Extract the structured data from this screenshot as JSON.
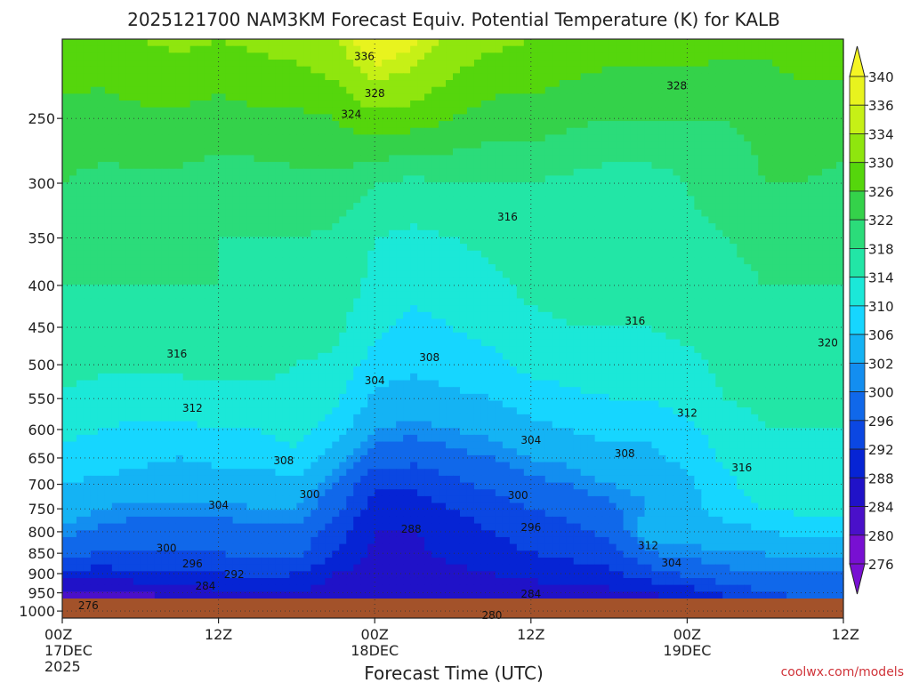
{
  "chart_data": {
    "type": "heatmap",
    "title": "2025121700 NAM3KM Forecast Equiv. Potential Temperature (K) for KALB",
    "xlabel": "Forecast Time (UTC)",
    "ylabel": "",
    "credit": "coolwx.com/models",
    "x_ticks": [
      {
        "t": 0,
        "label": "00Z",
        "sub1": "17DEC",
        "sub2": "2025"
      },
      {
        "t": 12,
        "label": "12Z",
        "sub1": "",
        "sub2": ""
      },
      {
        "t": 24,
        "label": "00Z",
        "sub1": "18DEC",
        "sub2": ""
      },
      {
        "t": 36,
        "label": "12Z",
        "sub1": "",
        "sub2": ""
      },
      {
        "t": 48,
        "label": "00Z",
        "sub1": "19DEC",
        "sub2": ""
      },
      {
        "t": 60,
        "label": "12Z",
        "sub1": "",
        "sub2": ""
      }
    ],
    "xlim": [
      0,
      60
    ],
    "y_ticks": [
      250,
      300,
      350,
      400,
      450,
      500,
      550,
      600,
      650,
      700,
      750,
      800,
      850,
      900,
      950,
      1000
    ],
    "ylim": [
      200,
      1020
    ],
    "y_scale": "log",
    "y_reversed": true,
    "grid": true,
    "levels": [
      276,
      280,
      284,
      288,
      292,
      296,
      300,
      302,
      306,
      310,
      314,
      318,
      322,
      326,
      330,
      334,
      336,
      340
    ],
    "colorbar": {
      "labels": [
        "340",
        "336",
        "334",
        "330",
        "326",
        "322",
        "318",
        "314",
        "310",
        "306",
        "302",
        "300",
        "296",
        "292",
        "288",
        "284",
        "280",
        "276"
      ],
      "colors": [
        "#f5f524",
        "#e8f31e",
        "#c6f016",
        "#8fe60e",
        "#55d60c",
        "#34d24a",
        "#2bdc7a",
        "#22e6a6",
        "#1be8d8",
        "#16d6ff",
        "#14b3f4",
        "#138ef0",
        "#1068ea",
        "#0b47e2",
        "#0624d4",
        "#2012c8",
        "#4a10c9",
        "#7810d2"
      ],
      "placement": "right"
    },
    "times": [
      0,
      3,
      6,
      9,
      12,
      15,
      18,
      21,
      24,
      27,
      30,
      33,
      36,
      39,
      42,
      45,
      48,
      51,
      54,
      57,
      60
    ],
    "pressures": [
      200,
      250,
      300,
      350,
      400,
      450,
      500,
      550,
      600,
      650,
      700,
      750,
      800,
      850,
      900,
      950,
      1000
    ],
    "values": [
      [
        330,
        329,
        330,
        331,
        330,
        331,
        332,
        334,
        339,
        337,
        333,
        331,
        330,
        329,
        328,
        328,
        328,
        327,
        327,
        328,
        328
      ],
      [
        324,
        324,
        325,
        325,
        324,
        325,
        325,
        326,
        329,
        328,
        326,
        324,
        324,
        323,
        322,
        322,
        322,
        322,
        323,
        324,
        324
      ],
      [
        322,
        321,
        321,
        321,
        320,
        320,
        321,
        321,
        318,
        317,
        318,
        318,
        318,
        317,
        316,
        316,
        318,
        320,
        322,
        322,
        321
      ],
      [
        320,
        319,
        319,
        319,
        318,
        318,
        318,
        317,
        314,
        313,
        314,
        315,
        316,
        316,
        315,
        316,
        317,
        318,
        319,
        319,
        319
      ],
      [
        318,
        318,
        318,
        318,
        318,
        317,
        317,
        316,
        313,
        311,
        312,
        313,
        315,
        315,
        315,
        315,
        316,
        317,
        318,
        318,
        318
      ],
      [
        317,
        317,
        317,
        317,
        317,
        316,
        316,
        315,
        311,
        309,
        310,
        311,
        313,
        314,
        314,
        314,
        315,
        316,
        317,
        317,
        317
      ],
      [
        316,
        315,
        315,
        315,
        315,
        315,
        314,
        313,
        308,
        307,
        308,
        309,
        311,
        312,
        312,
        312,
        313,
        315,
        316,
        316,
        316
      ],
      [
        313,
        312,
        312,
        312,
        313,
        313,
        313,
        311,
        305,
        304,
        305,
        306,
        308,
        309,
        310,
        310,
        312,
        314,
        315,
        315,
        315
      ],
      [
        311,
        310,
        309,
        309,
        310,
        310,
        312,
        308,
        302,
        301,
        302,
        303,
        305,
        306,
        307,
        307,
        309,
        312,
        314,
        314,
        314
      ],
      [
        309,
        308,
        307,
        306,
        307,
        307,
        309,
        304,
        298,
        297,
        299,
        300,
        302,
        303,
        305,
        305,
        307,
        311,
        313,
        313,
        313
      ],
      [
        306,
        305,
        304,
        304,
        304,
        304,
        305,
        300,
        293,
        293,
        295,
        297,
        299,
        300,
        302,
        303,
        305,
        309,
        312,
        312,
        312
      ],
      [
        304,
        302,
        301,
        301,
        301,
        302,
        302,
        297,
        290,
        290,
        292,
        294,
        296,
        297,
        299,
        302,
        305,
        308,
        310,
        311,
        311
      ],
      [
        301,
        299,
        298,
        298,
        298,
        299,
        299,
        294,
        288,
        288,
        290,
        292,
        294,
        295,
        297,
        304,
        303,
        304,
        306,
        307,
        307
      ],
      [
        297,
        296,
        296,
        296,
        296,
        297,
        297,
        292,
        287,
        287,
        289,
        290,
        292,
        293,
        294,
        300,
        301,
        302,
        302,
        303,
        303
      ],
      [
        291,
        290,
        291,
        292,
        292,
        293,
        292,
        288,
        286,
        286,
        287,
        288,
        289,
        290,
        291,
        294,
        297,
        299,
        300,
        300,
        300
      ],
      [
        283,
        283,
        284,
        286,
        287,
        288,
        288,
        286,
        285,
        285,
        285,
        285,
        286,
        287,
        287,
        288,
        290,
        293,
        296,
        297,
        298
      ],
      [
        276,
        277,
        278,
        280,
        281,
        282,
        283,
        282,
        282,
        282,
        281,
        281,
        281,
        282,
        282,
        283,
        284,
        287,
        291,
        293,
        294
      ]
    ],
    "contour_labels": [
      {
        "text": "336",
        "t": 23.2,
        "p": 210
      },
      {
        "text": "328",
        "t": 24.0,
        "p": 233
      },
      {
        "text": "324",
        "t": 22.2,
        "p": 247
      },
      {
        "text": "328",
        "t": 47.2,
        "p": 228
      },
      {
        "text": "316",
        "t": 34.2,
        "p": 330
      },
      {
        "text": "316",
        "t": 44.0,
        "p": 442
      },
      {
        "text": "320",
        "t": 58.8,
        "p": 470
      },
      {
        "text": "316",
        "t": 8.8,
        "p": 485
      },
      {
        "text": "308",
        "t": 28.2,
        "p": 490
      },
      {
        "text": "304",
        "t": 24.0,
        "p": 523
      },
      {
        "text": "312",
        "t": 10.0,
        "p": 565
      },
      {
        "text": "312",
        "t": 48.0,
        "p": 573
      },
      {
        "text": "304",
        "t": 36.0,
        "p": 618
      },
      {
        "text": "308",
        "t": 43.2,
        "p": 642
      },
      {
        "text": "308",
        "t": 17.0,
        "p": 655
      },
      {
        "text": "316",
        "t": 52.2,
        "p": 668
      },
      {
        "text": "300",
        "t": 19.0,
        "p": 720
      },
      {
        "text": "300",
        "t": 35.0,
        "p": 722
      },
      {
        "text": "304",
        "t": 12.0,
        "p": 742
      },
      {
        "text": "296",
        "t": 36.0,
        "p": 790
      },
      {
        "text": "288",
        "t": 26.8,
        "p": 794
      },
      {
        "text": "300",
        "t": 8.0,
        "p": 838
      },
      {
        "text": "312",
        "t": 45.0,
        "p": 832
      },
      {
        "text": "296",
        "t": 10.0,
        "p": 876
      },
      {
        "text": "304",
        "t": 46.8,
        "p": 873
      },
      {
        "text": "292",
        "t": 13.2,
        "p": 902
      },
      {
        "text": "284",
        "t": 11.0,
        "p": 932
      },
      {
        "text": "284",
        "t": 36.0,
        "p": 953
      },
      {
        "text": "276",
        "t": 2.0,
        "p": 985
      },
      {
        "text": "280",
        "t": 33.0,
        "p": 1012
      }
    ]
  }
}
